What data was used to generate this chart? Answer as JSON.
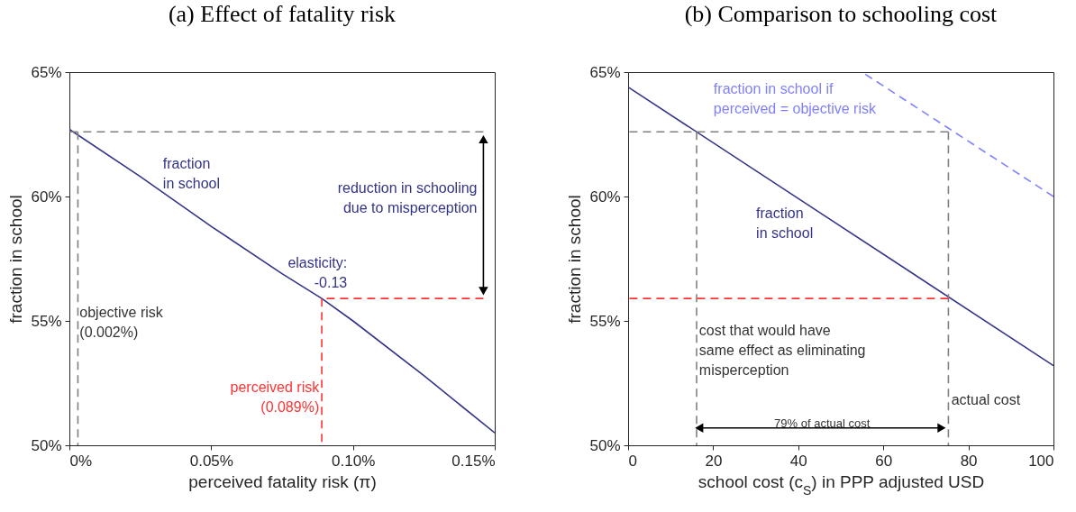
{
  "chart_data": [
    {
      "type": "line",
      "title": "(a) Effect of fatality risk",
      "xlabel": "perceived fatality risk (π)",
      "ylabel": "fraction in school",
      "xlim": [
        0,
        0.15
      ],
      "xticks": [
        {
          "value": 0,
          "label": "0%"
        },
        {
          "value": 0.05,
          "label": "0.05%"
        },
        {
          "value": 0.1,
          "label": "0.10%"
        },
        {
          "value": 0.15,
          "label": "0.15%"
        }
      ],
      "ylim": [
        50,
        65
      ],
      "yticks": [
        {
          "value": 50,
          "label": "50%"
        },
        {
          "value": 55,
          "label": "55%"
        },
        {
          "value": 60,
          "label": "60%"
        },
        {
          "value": 65,
          "label": "65%"
        }
      ],
      "series": [
        {
          "type": "line",
          "color": "#333388",
          "line_style": "solid",
          "x": [
            0,
            0.025,
            0.05,
            0.075,
            0.089,
            0.1,
            0.125,
            0.15
          ],
          "values": [
            62.7,
            60.8,
            58.8,
            56.9,
            55.9,
            55.0,
            52.8,
            50.5
          ]
        },
        {
          "type": "line",
          "color": "#808080",
          "line_style": "dashed",
          "x": [
            0,
            0.146
          ],
          "values": [
            62.6,
            62.6
          ]
        },
        {
          "type": "line",
          "color": "#808080",
          "line_style": "dashed",
          "x": [
            0.003,
            0.003
          ],
          "values": [
            50,
            62.6
          ]
        },
        {
          "type": "line",
          "color": "#ff3333",
          "line_style": "dashed",
          "x": [
            0.089,
            0.146
          ],
          "values": [
            55.9,
            55.9
          ]
        },
        {
          "type": "line",
          "color": "#ff3333",
          "line_style": "dashed",
          "x": [
            0.089,
            0.089
          ],
          "values": [
            50,
            55.9
          ]
        },
        {
          "type": "line",
          "color": "#000000",
          "line_style": "solid",
          "marker": "triangle",
          "x": [
            0.146,
            0.146
          ],
          "values": [
            56.2,
            62.3
          ]
        }
      ],
      "annotations": [
        "fraction\nin school",
        "elasticity:\n-0.13",
        "reduction in schooling\ndue to misperception",
        {
          "text": "objective risk\n(0.002%)",
          "x": 0.0036,
          "y": 55.6
        },
        {
          "text": "perceived risk\n(0.089%)",
          "x": 0.0881,
          "y": 52.6
        }
      ]
    },
    {
      "type": "line",
      "title": "(b) Comparison to schooling cost",
      "xlabel": "school cost (c$_{S}$) in PPP adjusted USD",
      "ylabel": "fraction in school",
      "xlim": [
        0,
        100
      ],
      "xticks": [
        0,
        20,
        40,
        60,
        80,
        100
      ],
      "ylim": [
        50,
        65
      ],
      "yticks": [
        {
          "value": 50,
          "label": "50%"
        },
        {
          "value": 55,
          "label": "55%"
        },
        {
          "value": 60,
          "label": "60%"
        },
        {
          "value": 65,
          "label": "65%"
        }
      ],
      "series": [
        {
          "type": "line",
          "color": "#333388",
          "line_style": "solid",
          "x": [
            0,
            50,
            100
          ],
          "values": [
            64.4,
            58.8,
            53.2
          ]
        },
        {
          "type": "line",
          "color": "#8080ff",
          "line_style": "dashed",
          "x": [
            55,
            100
          ],
          "values": [
            65,
            60
          ]
        },
        {
          "type": "line",
          "color": "#808080",
          "line_style": "dashed",
          "x": [
            0,
            75.3
          ],
          "values": [
            62.6,
            62.6
          ]
        },
        {
          "type": "line",
          "color": "#808080",
          "line_style": "dashed",
          "x": [
            16.1,
            16.1
          ],
          "values": [
            50,
            62.6
          ]
        },
        {
          "type": "line",
          "color": "#808080",
          "line_style": "dashed",
          "x": [
            75.3,
            75.3
          ],
          "values": [
            50,
            62.6
          ]
        },
        {
          "type": "line",
          "color": "#ff3333",
          "line_style": "dashed",
          "x": [
            0,
            75.3
          ],
          "values": [
            55.9,
            55.9
          ]
        },
        {
          "type": "line",
          "color": "#000000",
          "line_style": "solid",
          "marker": "triangle",
          "x": [
            16.7,
            73.7
          ],
          "values": [
            50.7,
            50.7
          ]
        }
      ],
      "annotations": [
        "fraction in school if\nperceived = objective risk",
        "fraction\nin school",
        {
          "text": "cost that would have\nsame effect as eliminating\nmisperception",
          "x": 16.7,
          "y": 54.9
        },
        {
          "text": "actual cost",
          "x": 76,
          "y": 52.1
        },
        "79% of actual cost"
      ]
    }
  ]
}
